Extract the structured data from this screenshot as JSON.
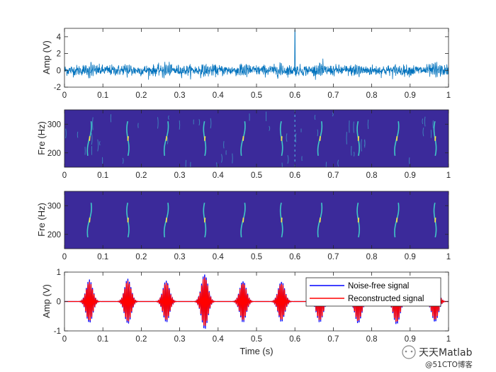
{
  "chart_data": [
    {
      "type": "line",
      "panel": "noisy-signal",
      "ylabel": "Amp (V)",
      "xlim": [
        0,
        1
      ],
      "ylim": [
        -2,
        5
      ],
      "xticks": [
        "0",
        "0.1",
        "0.2",
        "0.3",
        "0.4",
        "0.5",
        "0.6",
        "0.7",
        "0.8",
        "0.9",
        "1"
      ],
      "yticks": [
        "-2",
        "0",
        "2",
        "4"
      ],
      "series": [
        {
          "color": "#0072BD",
          "description_values": {
            "noise_amplitude": 0.5,
            "spike_x": 0.6,
            "spike_y": 4.8
          }
        }
      ]
    },
    {
      "type": "heatmap",
      "panel": "time-frequency-noisy",
      "ylabel": "Fre (Hz)",
      "xlim": [
        0,
        1
      ],
      "ylim": [
        150,
        350
      ],
      "xticks": [
        "0",
        "0.1",
        "0.2",
        "0.3",
        "0.4",
        "0.5",
        "0.6",
        "0.7",
        "0.8",
        "0.9",
        "1"
      ],
      "yticks": [
        "200",
        "300"
      ],
      "colors": {
        "background": "#3B2A9A",
        "ridge": "#40C8C8",
        "peak": "#F5E04A"
      },
      "burst_centers": [
        0.065,
        0.165,
        0.265,
        0.365,
        0.465,
        0.565,
        0.665,
        0.765,
        0.865,
        0.965
      ]
    },
    {
      "type": "heatmap",
      "panel": "time-frequency-denoised",
      "ylabel": "Fre (Hz)",
      "xlim": [
        0,
        1
      ],
      "ylim": [
        150,
        350
      ],
      "xticks": [
        "0",
        "0.1",
        "0.2",
        "0.3",
        "0.4",
        "0.5",
        "0.6",
        "0.7",
        "0.8",
        "0.9",
        "1"
      ],
      "yticks": [
        "200",
        "300"
      ],
      "colors": {
        "background": "#3B2A9A",
        "ridge": "#40C8C8",
        "peak": "#F5E04A"
      },
      "burst_centers": [
        0.065,
        0.165,
        0.265,
        0.365,
        0.465,
        0.565,
        0.665,
        0.765,
        0.865,
        0.965
      ]
    },
    {
      "type": "line",
      "panel": "reconstruction",
      "xlabel": "Time (s)",
      "ylabel": "Amp (V)",
      "xlim": [
        0,
        1
      ],
      "ylim": [
        -1,
        1
      ],
      "xticks": [
        "0",
        "0.1",
        "0.2",
        "0.3",
        "0.4",
        "0.5",
        "0.6",
        "0.7",
        "0.8",
        "0.9",
        "1"
      ],
      "yticks": [
        "-1",
        "0",
        "1"
      ],
      "burst_centers": [
        0.065,
        0.165,
        0.265,
        0.365,
        0.465,
        0.565,
        0.665,
        0.765,
        0.865,
        0.965
      ],
      "burst_amplitudes": [
        0.75,
        0.78,
        0.72,
        0.95,
        0.72,
        0.7,
        0.72,
        0.76,
        0.8,
        0.72
      ],
      "legend_position": "top-right",
      "series": [
        {
          "name": "Noise-free signal",
          "color": "#0000FF"
        },
        {
          "name": "Reconstructed signal",
          "color": "#FF0000"
        }
      ]
    }
  ],
  "watermark": {
    "line1": "天天Matlab",
    "line2": "@51CTO博客"
  }
}
